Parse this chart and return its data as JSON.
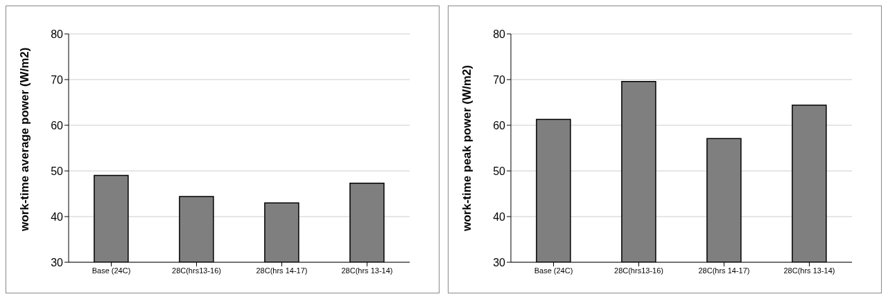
{
  "chart_data": [
    {
      "type": "bar",
      "ylabel": "work-time average power (W/m2)",
      "categories": [
        "Base (24C)",
        "28C(hrs13-16)",
        "28C(hrs 14-17)",
        "28C(hrs 13-14)"
      ],
      "values": [
        49,
        44.4,
        43,
        47.3
      ],
      "color": "#7f7f7f",
      "ylim": [
        30,
        80
      ],
      "yticks": [
        30,
        40,
        50,
        60,
        70,
        80
      ],
      "grid": "y"
    },
    {
      "type": "bar",
      "ylabel": "work-time peak power (W/m2)",
      "categories": [
        "Base (24C)",
        "28C(hrs13-16)",
        "28C(hrs 14-17)",
        "28C(hrs 13-14)"
      ],
      "values": [
        61.3,
        69.6,
        57.1,
        64.4
      ],
      "color": "#7f7f7f",
      "ylim": [
        30,
        80
      ],
      "yticks": [
        30,
        40,
        50,
        60,
        70,
        80
      ],
      "grid": "y"
    }
  ]
}
